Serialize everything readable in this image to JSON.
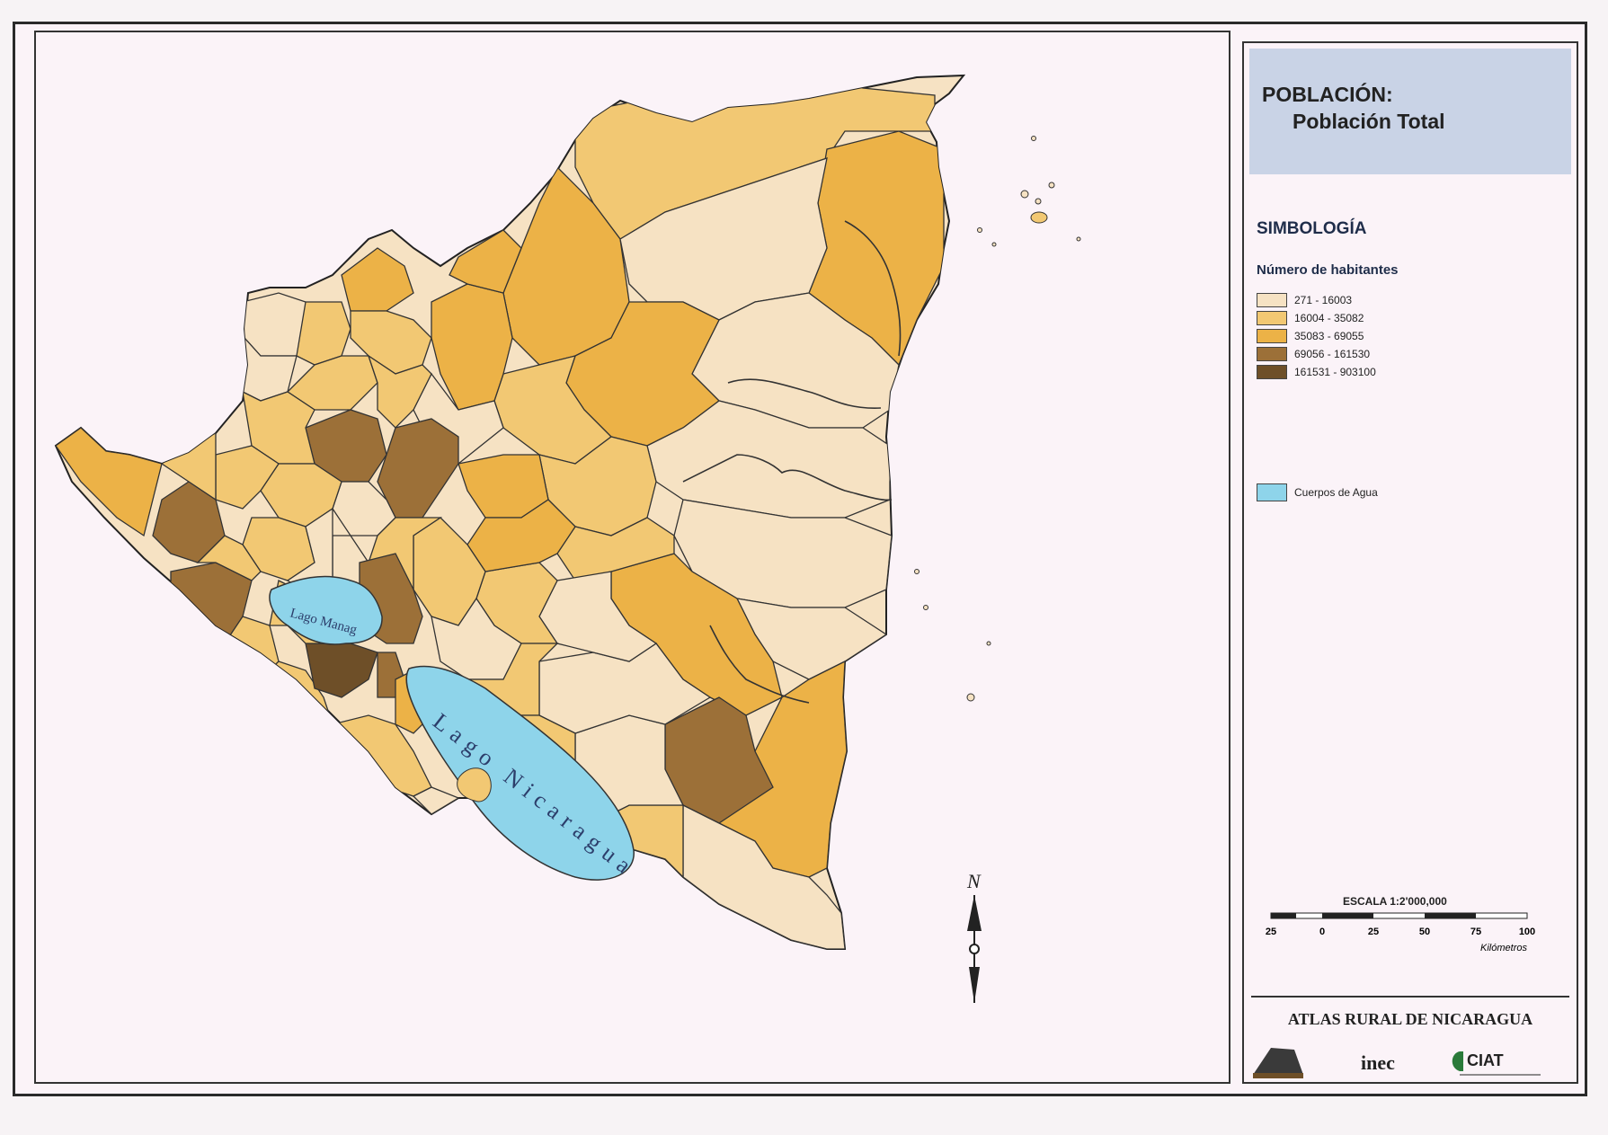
{
  "title": {
    "main": "POBLACIÓN:",
    "sub": "Población Total"
  },
  "legend": {
    "section": "SIMBOLOGÍA",
    "heading": "Número de habitantes",
    "classes": [
      {
        "label": "271 - 16003",
        "color": "#f6e2c3"
      },
      {
        "label": "16004 - 35082",
        "color": "#f2c873"
      },
      {
        "label": "35083 - 69055",
        "color": "#ecb247"
      },
      {
        "label": "69056 - 161530",
        "color": "#9c7038"
      },
      {
        "label": "161531 - 903100",
        "color": "#6e4f28"
      }
    ],
    "water": {
      "label": "Cuerpos de Agua",
      "color": "#8ed4ea"
    }
  },
  "map": {
    "lake_nicaragua": "Lago Nicaragua",
    "lake_managua": "Lago Manag",
    "north_label": "N"
  },
  "scale": {
    "title": "ESCALA 1:2'000,000",
    "ticks": [
      "25",
      "0",
      "25",
      "50",
      "75",
      "100"
    ],
    "unit": "Kilómetros"
  },
  "footer": {
    "atlas_title": "ATLAS RURAL DE NICARAGUA",
    "logo_inec": "inec",
    "logo_ciat": "CIAT"
  }
}
